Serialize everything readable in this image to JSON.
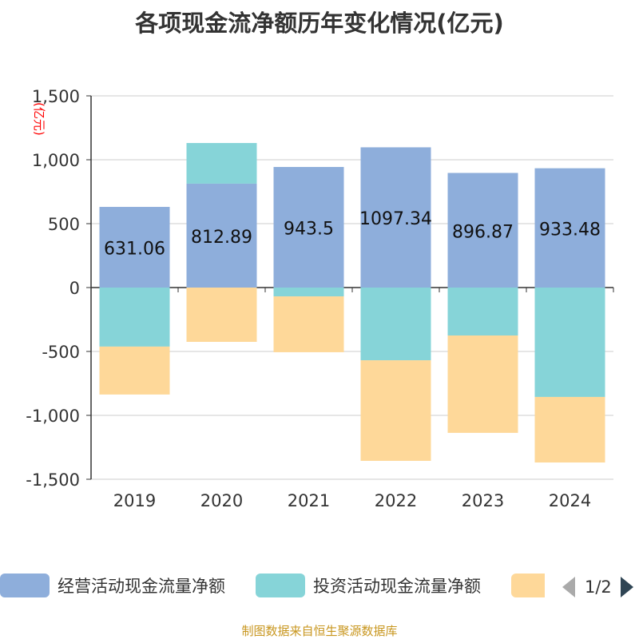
{
  "title": "各项现金流净额历年变化情况(亿元)",
  "footer": "制图数据来自恒生聚源数据库",
  "legend_page": "1/2",
  "chart_data": {
    "type": "bar",
    "stacked": true,
    "title": "各项现金流净额历年变化情况(亿元)",
    "ylabel": "(亿元)",
    "ylim": [
      -1500,
      1500
    ],
    "yticks": [
      1500,
      1000,
      500,
      0,
      -500,
      -1000,
      -1500
    ],
    "ytick_labels": [
      "1,500",
      "1,000",
      "500",
      "0",
      "-500",
      "-1,000",
      "-1,500"
    ],
    "grid": true,
    "legend_position": "bottom",
    "categories": [
      "2019",
      "2020",
      "2021",
      "2022",
      "2023",
      "2024"
    ],
    "series": [
      {
        "name": "经营活动现金流量净额",
        "color": "#8eaedb",
        "values": [
          631.06,
          812.89,
          943.5,
          1097.34,
          896.87,
          933.48
        ],
        "data_labels": [
          "631.06",
          "812.89",
          "943.5",
          "1097.34",
          "896.87",
          "933.48"
        ]
      },
      {
        "name": "投资活动现金流量净额",
        "color": "#86d4d8",
        "values": [
          -462,
          318,
          -69,
          -569,
          -375,
          -856
        ]
      },
      {
        "name": "",
        "color": "#fed899",
        "values": [
          -375,
          -425,
          -437,
          -787,
          -762,
          -513
        ]
      }
    ]
  }
}
